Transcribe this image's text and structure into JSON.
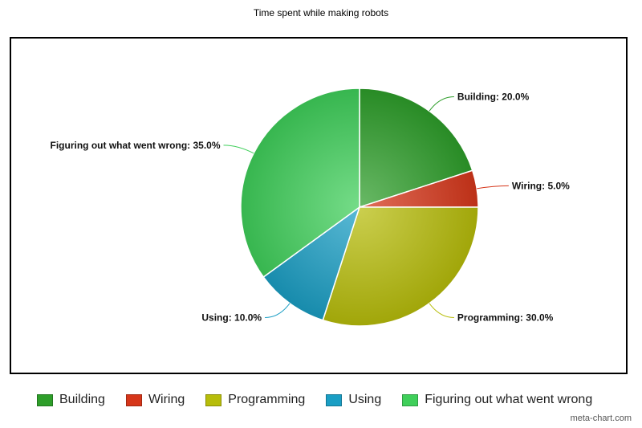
{
  "chart_data": {
    "type": "pie",
    "title": "Time spent while making robots",
    "slices": [
      {
        "label": "Building",
        "value": 20.0,
        "color": "#2e9e2a",
        "display": "Building: 20.0%"
      },
      {
        "label": "Wiring",
        "value": 5.0,
        "color": "#d6361a",
        "display": "Wiring: 5.0%"
      },
      {
        "label": "Programming",
        "value": 30.0,
        "color": "#b7bd0a",
        "display": "Programming: 30.0%"
      },
      {
        "label": "Using",
        "value": 10.0,
        "color": "#1a9ec4",
        "display": "Using: 10.0%"
      },
      {
        "label": "Figuring out what went wrong",
        "value": 35.0,
        "color": "#3fcf5a",
        "display": "Figuring out what went wrong: 35.0%"
      }
    ],
    "legend_position": "bottom"
  },
  "credit": "meta-chart.com"
}
